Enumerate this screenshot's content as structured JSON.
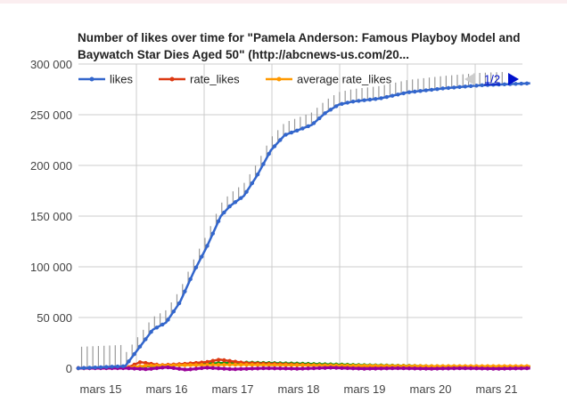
{
  "chart_data": {
    "type": "line",
    "title": "Number of likes over time for \"Pamela Anderson: Famous Playboy Model and Baywatch Star Dies Aged 50\" (http://abcnews-us.com/20...",
    "xlabel": "",
    "ylabel": "",
    "x_tick_labels": [
      "mars 15",
      "mars 16",
      "mars 17",
      "mars 18",
      "mars 19",
      "mars 20",
      "mars 21"
    ],
    "y_tick_labels": [
      "0",
      "50 000",
      "100 000",
      "150 000",
      "200 000",
      "250 000",
      "300 000"
    ],
    "ylim": [
      0,
      300000
    ],
    "grid": true,
    "legend": {
      "position": "top",
      "page": "1/2",
      "entries": [
        "likes",
        "rate_likes",
        "average rate_likes"
      ]
    },
    "colors": {
      "likes": "#3366cc",
      "rate_likes": "#dc3912",
      "average rate_likes": "#ff9900",
      "series4": "#109618",
      "series5": "#990099",
      "error_bars": "#999999"
    },
    "series": [
      {
        "name": "likes",
        "x": [
          -0.34,
          0.37,
          0.58,
          0.79,
          0.99,
          1.2,
          1.41,
          1.61,
          1.82,
          1.96,
          2.17,
          2.37,
          2.58,
          2.79,
          3.0,
          3.2,
          3.41,
          3.61,
          3.82,
          4.23,
          4.65,
          5.2,
          5.75,
          6.51
        ],
        "values": [
          0,
          2000,
          20000,
          38000,
          45000,
          65000,
          95000,
          120000,
          150000,
          160000,
          170000,
          190000,
          215000,
          230000,
          235000,
          240000,
          252000,
          260000,
          263000,
          266000,
          272000,
          276000,
          279000,
          281000
        ]
      },
      {
        "name": "rate_likes",
        "x": [
          -0.34,
          0.4,
          0.6,
          0.9,
          1.2,
          1.6,
          1.8,
          2.2,
          3,
          4,
          5,
          6.51
        ],
        "values": [
          0,
          500,
          6000,
          3000,
          4000,
          6000,
          8500,
          5000,
          3500,
          2000,
          1500,
          1500
        ]
      },
      {
        "name": "average rate_likes",
        "x": [
          -0.34,
          0.4,
          0.7,
          1.2,
          2,
          3,
          4,
          5,
          6.51
        ],
        "values": [
          0,
          500,
          2500,
          3000,
          3500,
          3000,
          2500,
          2000,
          2000
        ]
      },
      {
        "x": [
          -0.34,
          0.4,
          0.7,
          1.2,
          1.8,
          2.2,
          3,
          4,
          5,
          6.51
        ],
        "values": [
          0,
          500,
          2000,
          3000,
          5000,
          5500,
          4500,
          3000,
          2000,
          1500
        ]
      },
      {
        "x": [
          -0.34,
          0.4,
          0.7,
          1.0,
          1.3,
          1.6,
          2.0,
          2.5,
          3,
          3.5,
          4,
          4.5,
          5,
          5.5,
          6,
          6.51
        ],
        "values": [
          0,
          0,
          -1000,
          1000,
          -1500,
          500,
          -1000,
          0,
          -500,
          500,
          -500,
          0,
          -500,
          0,
          -500,
          0
        ]
      }
    ]
  }
}
